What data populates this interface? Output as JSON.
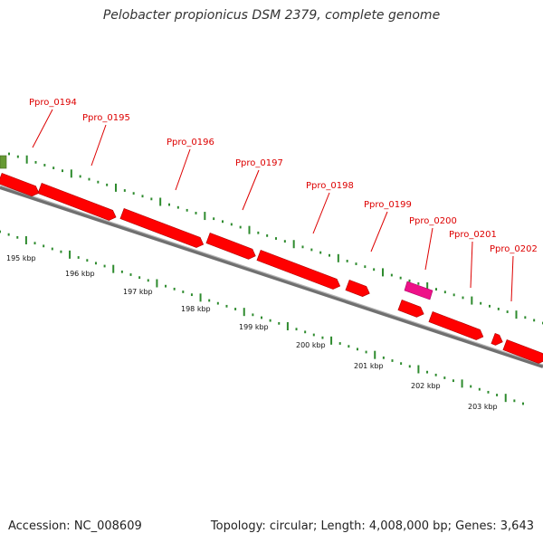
{
  "title": "Pelobacter propionicus DSM 2379, complete genome",
  "accession": "Accession: NC_008609",
  "summary": "Topology: circular; Length: 4,008,000 bp; Genes: 3,643",
  "colors": {
    "gene": "#ff0000",
    "gene_other": "#ee1188",
    "gene_green": "#669933",
    "backbone": "#808080",
    "ticks": "#2e8b2e",
    "label": "#dd0000"
  },
  "kbp_labels": [
    "195 kbp",
    "196 kbp",
    "197 kbp",
    "198 kbp",
    "199 kbp",
    "200 kbp",
    "201 kbp",
    "202 kbp",
    "203 kbp"
  ],
  "gene_labels": [
    "Ppro_0194",
    "Ppro_0195",
    "Ppro_0196",
    "Ppro_0197",
    "Ppro_0198",
    "Ppro_0199",
    "Ppro_0200",
    "Ppro_0201",
    "Ppro_0202"
  ]
}
